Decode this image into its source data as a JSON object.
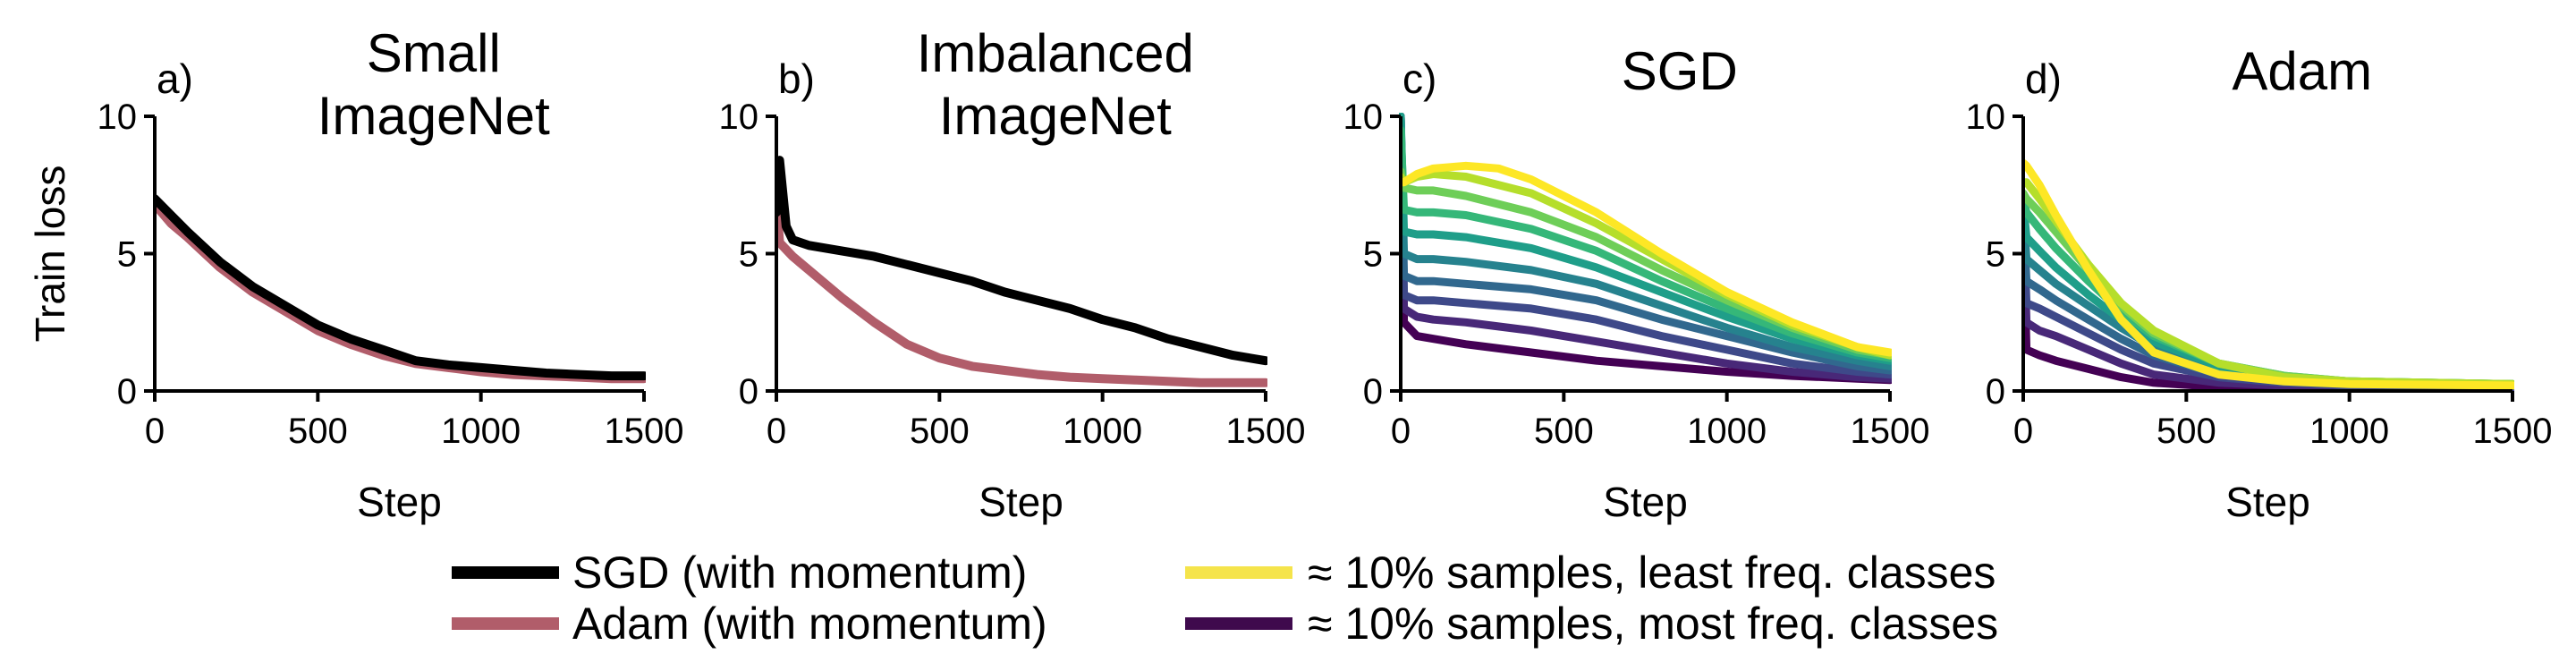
{
  "colors": {
    "sgd": "#000000",
    "adam": "#b15d6a",
    "least_freq": "#f5e44b",
    "most_freq": "#3f0a4d",
    "viridis_ramp": [
      "#440154",
      "#482878",
      "#3e4989",
      "#31688e",
      "#26828e",
      "#1f9e89",
      "#35b779",
      "#6ece58",
      "#b5de2b",
      "#fde725"
    ]
  },
  "legend": {
    "sgd": "SGD (with momentum)",
    "adam": "Adam (with momentum)",
    "least": "≈ 10% samples, least freq. classes",
    "most": "≈ 10% samples, most freq. classes"
  },
  "chart_data": [
    {
      "type": "line",
      "letter": "a)",
      "title_lines": [
        "Small",
        "ImageNet"
      ],
      "xlabel": "Step",
      "ylabel": "Train loss",
      "xlim": [
        0,
        1500
      ],
      "ylim": [
        0,
        10
      ],
      "xticks": [
        "0",
        "500",
        "1000",
        "1500"
      ],
      "yticks": [
        "0",
        "5",
        "10"
      ],
      "series": [
        {
          "name": "Adam (with momentum)",
          "color_key": "adam",
          "x": [
            0,
            50,
            100,
            200,
            300,
            400,
            500,
            600,
            700,
            800,
            900,
            1000,
            1100,
            1200,
            1300,
            1400,
            1500
          ],
          "y": [
            6.8,
            6.1,
            5.6,
            4.5,
            3.6,
            2.9,
            2.2,
            1.7,
            1.3,
            1.0,
            0.85,
            0.7,
            0.6,
            0.55,
            0.5,
            0.45,
            0.45
          ]
        },
        {
          "name": "SGD (with momentum)",
          "color_key": "sgd",
          "x": [
            0,
            50,
            100,
            200,
            300,
            400,
            500,
            600,
            700,
            800,
            900,
            1000,
            1100,
            1200,
            1300,
            1400,
            1500
          ],
          "y": [
            7.0,
            6.4,
            5.8,
            4.7,
            3.8,
            3.1,
            2.4,
            1.9,
            1.5,
            1.1,
            0.95,
            0.85,
            0.75,
            0.65,
            0.6,
            0.55,
            0.55
          ]
        }
      ]
    },
    {
      "type": "line",
      "letter": "b)",
      "title_lines": [
        "Imbalanced",
        "ImageNet"
      ],
      "xlabel": "Step",
      "xlim": [
        0,
        1500
      ],
      "ylim": [
        0,
        10
      ],
      "xticks": [
        "0",
        "500",
        "1000",
        "1500"
      ],
      "yticks": [
        "0",
        "5",
        "10"
      ],
      "series": [
        {
          "name": "Adam (with momentum)",
          "color_key": "adam",
          "x": [
            0,
            10,
            50,
            100,
            200,
            300,
            400,
            500,
            600,
            700,
            800,
            900,
            1000,
            1100,
            1200,
            1300,
            1400,
            1500
          ],
          "y": [
            7.0,
            5.4,
            4.9,
            4.4,
            3.4,
            2.5,
            1.7,
            1.2,
            0.9,
            0.75,
            0.6,
            0.5,
            0.45,
            0.4,
            0.35,
            0.3,
            0.3,
            0.3
          ]
        },
        {
          "name": "SGD (with momentum)",
          "color_key": "sgd",
          "x": [
            0,
            10,
            30,
            50,
            100,
            200,
            300,
            400,
            500,
            600,
            700,
            800,
            900,
            1000,
            1100,
            1200,
            1300,
            1400,
            1500
          ],
          "y": [
            6.5,
            8.4,
            6.0,
            5.5,
            5.3,
            5.1,
            4.9,
            4.6,
            4.3,
            4.0,
            3.6,
            3.3,
            3.0,
            2.6,
            2.3,
            1.9,
            1.6,
            1.3,
            1.1
          ]
        }
      ]
    },
    {
      "type": "line",
      "letter": "c)",
      "title_lines": [
        "SGD"
      ],
      "xlabel": "Step",
      "xlim": [
        0,
        1500
      ],
      "ylim": [
        0,
        10
      ],
      "xticks": [
        "0",
        "500",
        "1000",
        "1500"
      ],
      "yticks": [
        "0",
        "5",
        "10"
      ],
      "colormap_series": true,
      "series": [
        {
          "x": [
            0,
            10,
            50,
            100,
            200,
            400,
            600,
            800,
            1000,
            1200,
            1400,
            1500
          ],
          "y": [
            10.0,
            2.5,
            2.0,
            1.9,
            1.7,
            1.4,
            1.1,
            0.9,
            0.7,
            0.55,
            0.45,
            0.4
          ]
        },
        {
          "x": [
            0,
            10,
            50,
            100,
            200,
            400,
            600,
            800,
            1000,
            1200,
            1400,
            1500
          ],
          "y": [
            10.0,
            3.0,
            2.7,
            2.6,
            2.5,
            2.2,
            1.8,
            1.4,
            1.0,
            0.7,
            0.5,
            0.45
          ]
        },
        {
          "x": [
            0,
            10,
            50,
            100,
            200,
            400,
            600,
            800,
            1000,
            1200,
            1400,
            1500
          ],
          "y": [
            10.0,
            3.5,
            3.3,
            3.3,
            3.2,
            3.0,
            2.6,
            2.0,
            1.5,
            1.0,
            0.7,
            0.6
          ]
        },
        {
          "x": [
            0,
            10,
            50,
            100,
            200,
            400,
            600,
            800,
            1000,
            1200,
            1400,
            1500
          ],
          "y": [
            10.0,
            4.2,
            4.0,
            4.0,
            3.9,
            3.7,
            3.3,
            2.6,
            2.0,
            1.4,
            0.9,
            0.75
          ]
        },
        {
          "x": [
            0,
            10,
            50,
            100,
            200,
            400,
            600,
            800,
            1000,
            1200,
            1400,
            1500
          ],
          "y": [
            10.0,
            5.0,
            4.8,
            4.8,
            4.7,
            4.4,
            3.9,
            3.1,
            2.3,
            1.6,
            1.1,
            0.9
          ]
        },
        {
          "x": [
            0,
            10,
            50,
            100,
            200,
            400,
            600,
            800,
            1000,
            1200,
            1400,
            1500
          ],
          "y": [
            10.0,
            5.8,
            5.7,
            5.7,
            5.6,
            5.2,
            4.5,
            3.6,
            2.7,
            1.9,
            1.3,
            1.1
          ]
        },
        {
          "x": [
            0,
            10,
            50,
            100,
            200,
            400,
            600,
            800,
            1000,
            1200,
            1400,
            1500
          ],
          "y": [
            9.5,
            6.6,
            6.5,
            6.5,
            6.4,
            5.9,
            5.1,
            4.0,
            3.0,
            2.1,
            1.4,
            1.2
          ]
        },
        {
          "x": [
            0,
            10,
            50,
            100,
            200,
            400,
            600,
            800,
            1000,
            1200,
            1400,
            1500
          ],
          "y": [
            8.0,
            7.4,
            7.3,
            7.3,
            7.1,
            6.5,
            5.6,
            4.4,
            3.3,
            2.3,
            1.5,
            1.3
          ]
        },
        {
          "x": [
            0,
            10,
            50,
            100,
            200,
            400,
            600,
            800,
            1000,
            1200,
            1400,
            1500
          ],
          "y": [
            7.8,
            7.6,
            7.8,
            7.9,
            7.8,
            7.2,
            6.1,
            4.8,
            3.5,
            2.4,
            1.6,
            1.3
          ]
        },
        {
          "x": [
            0,
            10,
            50,
            100,
            200,
            300,
            400,
            600,
            800,
            1000,
            1200,
            1400,
            1500
          ],
          "y": [
            7.6,
            7.6,
            7.9,
            8.1,
            8.2,
            8.1,
            7.7,
            6.5,
            5.0,
            3.6,
            2.5,
            1.6,
            1.4
          ]
        }
      ]
    },
    {
      "type": "line",
      "letter": "d)",
      "title_lines": [
        "Adam"
      ],
      "xlabel": "Step",
      "xlim": [
        0,
        1500
      ],
      "ylim": [
        0,
        10
      ],
      "xticks": [
        "0",
        "500",
        "1000",
        "1500"
      ],
      "yticks": [
        "0",
        "5",
        "10"
      ],
      "colormap_series": true,
      "series": [
        {
          "x": [
            0,
            10,
            50,
            100,
            200,
            300,
            400,
            600,
            800,
            1000,
            1500
          ],
          "y": [
            6.5,
            1.5,
            1.3,
            1.1,
            0.8,
            0.5,
            0.3,
            0.15,
            0.1,
            0.1,
            0.1
          ]
        },
        {
          "x": [
            0,
            10,
            50,
            100,
            200,
            300,
            400,
            600,
            800,
            1000,
            1500
          ],
          "y": [
            6.5,
            2.5,
            2.2,
            2.0,
            1.5,
            1.0,
            0.6,
            0.3,
            0.2,
            0.15,
            0.1
          ]
        },
        {
          "x": [
            0,
            10,
            50,
            100,
            200,
            300,
            400,
            600,
            800,
            1000,
            1500
          ],
          "y": [
            6.5,
            3.2,
            3.0,
            2.7,
            2.1,
            1.5,
            1.0,
            0.5,
            0.3,
            0.2,
            0.15
          ]
        },
        {
          "x": [
            0,
            10,
            50,
            100,
            200,
            300,
            400,
            600,
            800,
            1000,
            1500
          ],
          "y": [
            6.5,
            4.0,
            3.7,
            3.3,
            2.6,
            1.9,
            1.3,
            0.6,
            0.35,
            0.25,
            0.2
          ]
        },
        {
          "x": [
            0,
            10,
            50,
            100,
            200,
            300,
            400,
            600,
            800,
            1000,
            1500
          ],
          "y": [
            6.6,
            4.8,
            4.4,
            3.9,
            3.1,
            2.3,
            1.6,
            0.8,
            0.45,
            0.3,
            0.2
          ]
        },
        {
          "x": [
            0,
            10,
            50,
            100,
            200,
            300,
            400,
            600,
            800,
            1000,
            1500
          ],
          "y": [
            6.8,
            5.6,
            5.1,
            4.5,
            3.5,
            2.6,
            1.8,
            0.9,
            0.5,
            0.35,
            0.25
          ]
        },
        {
          "x": [
            0,
            10,
            50,
            100,
            200,
            300,
            400,
            600,
            800,
            1000,
            1500
          ],
          "y": [
            7.0,
            6.5,
            5.9,
            5.2,
            4.0,
            2.9,
            2.0,
            1.0,
            0.55,
            0.35,
            0.25
          ]
        },
        {
          "x": [
            0,
            10,
            50,
            100,
            200,
            300,
            400,
            600,
            800,
            1000,
            1500
          ],
          "y": [
            7.2,
            7.0,
            6.5,
            5.8,
            4.4,
            3.1,
            2.1,
            1.0,
            0.55,
            0.35,
            0.25
          ]
        },
        {
          "x": [
            0,
            10,
            50,
            100,
            200,
            300,
            400,
            600,
            800,
            1000,
            1500
          ],
          "y": [
            7.6,
            7.6,
            7.0,
            6.2,
            4.6,
            3.2,
            2.2,
            1.0,
            0.5,
            0.35,
            0.25
          ]
        },
        {
          "x": [
            0,
            10,
            50,
            100,
            200,
            300,
            400,
            600,
            800,
            1000,
            1500
          ],
          "y": [
            8.3,
            8.2,
            7.5,
            6.4,
            4.4,
            2.6,
            1.4,
            0.6,
            0.35,
            0.25,
            0.2
          ]
        }
      ]
    }
  ]
}
